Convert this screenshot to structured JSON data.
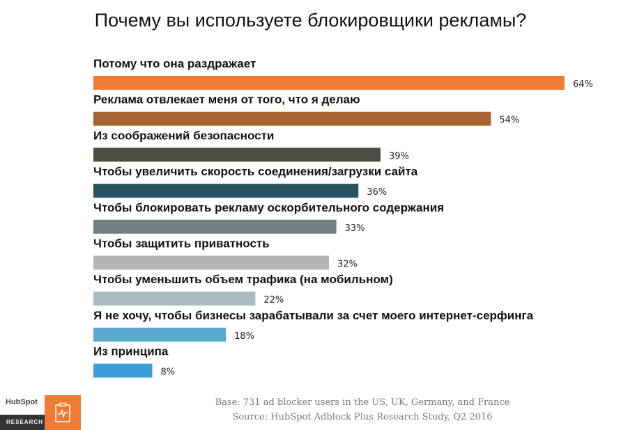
{
  "chart_data": {
    "type": "bar",
    "orientation": "horizontal",
    "title": "Почему вы используете блокировщики рекламы?",
    "categories": [
      "Потому что она раздражает",
      "Реклама отвлекает меня от того, что я делаю",
      "Из соображений безопасности",
      "Чтобы увеличить скорость соединения/загрузки сайта",
      "Чтобы блокировать рекламу оскорбительного содержания",
      "Чтобы защитить приватность",
      "Чтобы уменьшить объем трафика (на мобильном)",
      "Я не хочу, чтобы бизнесы зарабатывали за счет моего интернет-серфинга",
      "Из принципа"
    ],
    "values": [
      64,
      54,
      39,
      36,
      33,
      32,
      22,
      18,
      8
    ],
    "value_labels": [
      "64%",
      "54%",
      "39%",
      "36%",
      "33%",
      "32%",
      "22%",
      "18%",
      "8%"
    ],
    "unit": "%",
    "colors": [
      "#f07b34",
      "#a86430",
      "#4a4d42",
      "#27545e",
      "#6e8082",
      "#b5b5b5",
      "#a9bcc4",
      "#5ba8ce",
      "#3a9ed8"
    ],
    "xlim": [
      0,
      64
    ],
    "grid": false,
    "legend": "none"
  },
  "footnote": {
    "line1": "Base: 731 ad blocker users in the US, UK, Germany, and France",
    "line2": "Source: HubSpot Adblock Plus Research Study, Q2 2016"
  },
  "logo": {
    "brand": "HubSpot",
    "label": "RESEARCH",
    "icon": "clipboard-pulse-icon"
  }
}
